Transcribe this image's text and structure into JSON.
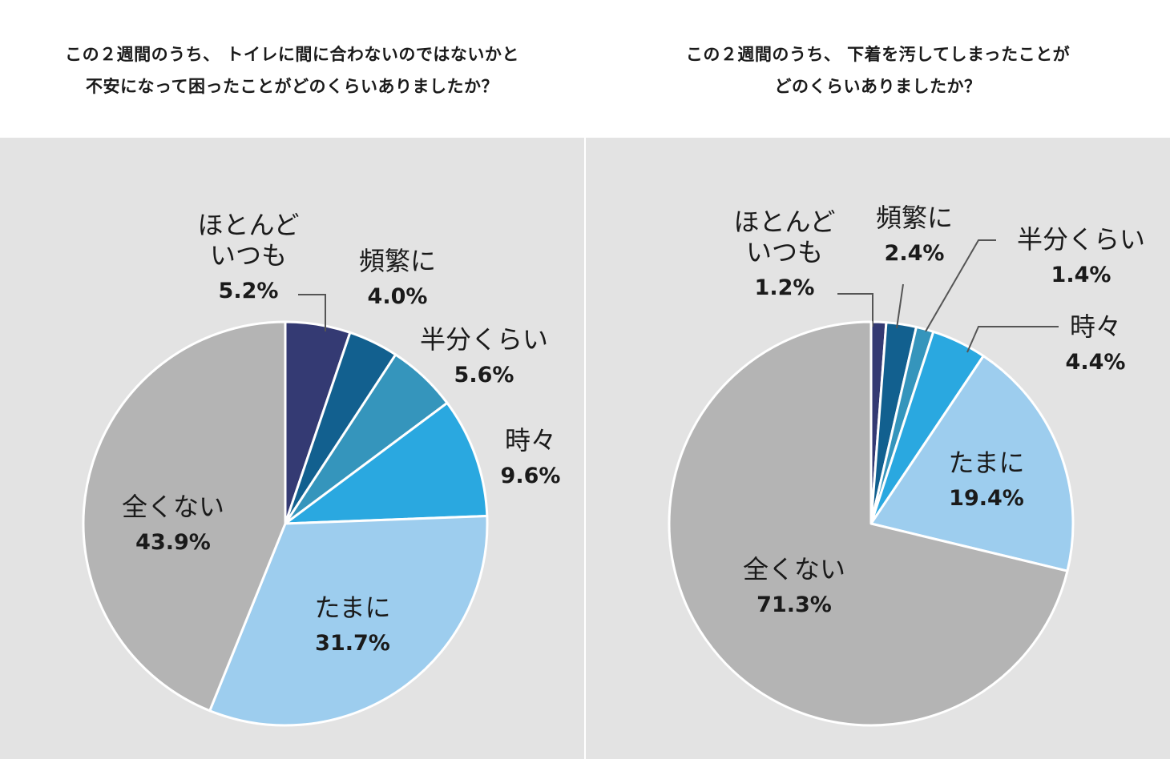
{
  "chart_data": [
    {
      "type": "pie",
      "title_lines": [
        "この２週間のうち、 トイレに間に合わないのではないかと",
        "不安になって困ったことがどのくらいありましたか？"
      ],
      "slices": [
        {
          "label": "ほとんどいつも",
          "display": [
            "ほとんど",
            "いつも"
          ],
          "value": 5.2,
          "value_label": "5.2%",
          "color": "#343a73"
        },
        {
          "label": "頻繁に",
          "display": [
            "頻繁に"
          ],
          "value": 4.0,
          "value_label": "4.0%",
          "color": "#12608f"
        },
        {
          "label": "半分くらい",
          "display": [
            "半分くらい"
          ],
          "value": 5.6,
          "value_label": "5.6%",
          "color": "#3595bc"
        },
        {
          "label": "時々",
          "display": [
            "時々"
          ],
          "value": 9.6,
          "value_label": "9.6%",
          "color": "#2aa8e0"
        },
        {
          "label": "たまに",
          "display": [
            "たまに"
          ],
          "value": 31.7,
          "value_label": "31.7%",
          "color": "#9dcdee"
        },
        {
          "label": "全くない",
          "display": [
            "全くない"
          ],
          "value": 43.9,
          "value_label": "43.9%",
          "color": "#b4b4b4"
        }
      ]
    },
    {
      "type": "pie",
      "title_lines": [
        "この２週間のうち、 下着を汚してしまったことが",
        "どのくらいありましたか？"
      ],
      "slices": [
        {
          "label": "ほとんどいつも",
          "display": [
            "ほとんど",
            "いつも"
          ],
          "value": 1.2,
          "value_label": "1.2%",
          "color": "#343a73"
        },
        {
          "label": "頻繁に",
          "display": [
            "頻繁に"
          ],
          "value": 2.4,
          "value_label": "2.4%",
          "color": "#12608f"
        },
        {
          "label": "半分くらい",
          "display": [
            "半分くらい"
          ],
          "value": 1.4,
          "value_label": "1.4%",
          "color": "#3595bc"
        },
        {
          "label": "時々",
          "display": [
            "時々"
          ],
          "value": 4.4,
          "value_label": "4.4%",
          "color": "#2aa8e0"
        },
        {
          "label": "たまに",
          "display": [
            "たまに"
          ],
          "value": 19.4,
          "value_label": "19.4%",
          "color": "#9dcdee"
        },
        {
          "label": "全くない",
          "display": [
            "全くない"
          ],
          "value": 71.3,
          "value_label": "71.3%",
          "color": "#b4b4b4"
        }
      ]
    }
  ]
}
